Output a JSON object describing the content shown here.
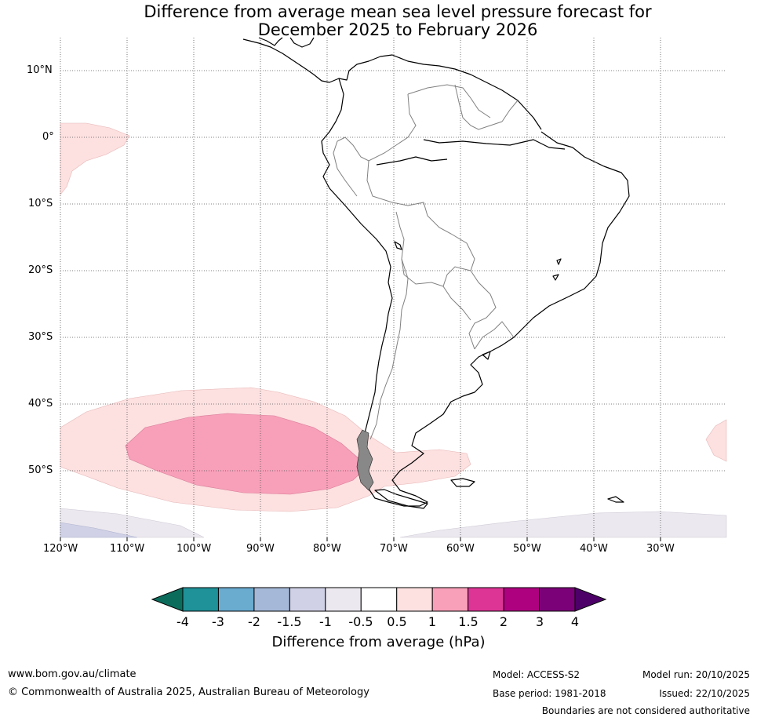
{
  "title": {
    "line1": "Difference from average mean sea level pressure forecast for",
    "line2": "December 2025 to February 2026"
  },
  "map": {
    "lat_labels": [
      "10°N",
      "0°",
      "10°S",
      "20°S",
      "30°S",
      "40°S",
      "50°S"
    ],
    "lon_labels": [
      "120°W",
      "110°W",
      "100°W",
      "90°W",
      "80°W",
      "70°W",
      "60°W",
      "50°W",
      "40°W",
      "30°W"
    ],
    "lat_values": [
      10,
      0,
      -10,
      -20,
      -30,
      -40,
      -50
    ],
    "lon_values": [
      -120,
      -110,
      -100,
      -90,
      -80,
      -70,
      -60,
      -50,
      -40,
      -30
    ],
    "extent": {
      "lon_min": -120,
      "lon_max": -20,
      "lat_min": -60,
      "lat_max": 15
    }
  },
  "colorbar": {
    "ticks": [
      "-4",
      "-3",
      "-2",
      "-1.5",
      "-1",
      "-0.5",
      "0.5",
      "1",
      "1.5",
      "2",
      "3",
      "4"
    ],
    "colors": [
      "#1f9198",
      "#6aabd0",
      "#a5b8d8",
      "#d0d1e6",
      "#ece8ef",
      "#ffffff",
      "#fde0e0",
      "#f89fb9",
      "#dd3596",
      "#ae0180",
      "#7a0177"
    ],
    "under_color": "#0b6c5c",
    "over_color": "#4d0068",
    "label": "Difference from average (hPa)"
  },
  "footer": {
    "website": "www.bom.gov.au/climate",
    "copyright": "© Commonwealth of Australia 2025, Australian Bureau of Meteorology",
    "model": "Model: ACCESS-S2",
    "base_period": "Base period: 1981-2018",
    "model_run": "Model run: 20/10/2025",
    "issued": "Issued: 22/10/2025",
    "disclaimer": "Boundaries are not considered authoritative"
  }
}
